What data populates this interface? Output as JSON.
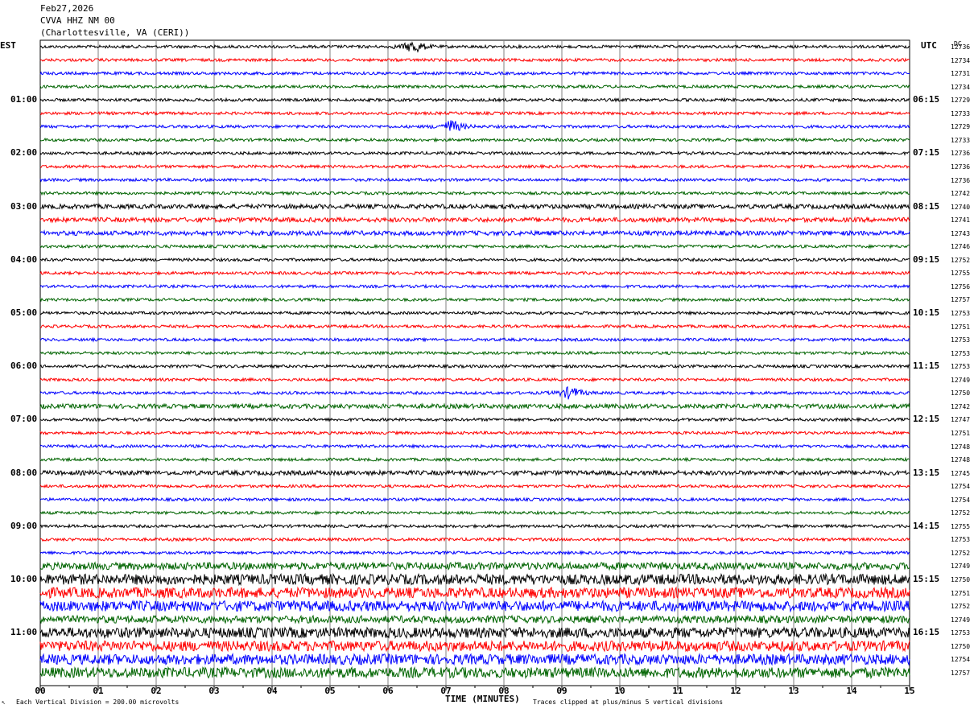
{
  "header": {
    "date": "Feb27,2026",
    "station": "CVVA HHZ NM 00",
    "location": "(Charlottesville, VA (CERI))"
  },
  "left_zone_label": "EST",
  "right_zone_label": "UTC",
  "dc_label": "DC",
  "footer": {
    "scale_note": "Each Vertical Division =  200.00 microvolts",
    "xlabel": "TIME (MINUTES)",
    "clip_note": "Traces clipped at plus/minus 5 vertical divisions",
    "corner_mark": "↖"
  },
  "colors": {
    "cycle": [
      "#000000",
      "#ff0000",
      "#0000ff",
      "#006400"
    ],
    "grid": "#808080",
    "frame": "#000000"
  },
  "chart_data": {
    "type": "line",
    "title": "CVVA HHZ NM 00",
    "xlabel": "TIME (MINUTES)",
    "xlim": [
      0,
      15
    ],
    "x_ticks": [
      "00",
      "01",
      "02",
      "03",
      "04",
      "05",
      "06",
      "07",
      "08",
      "09",
      "10",
      "11",
      "12",
      "13",
      "14",
      "15"
    ],
    "trace_interval_minutes": 15,
    "left_time_labels": [
      "01:00",
      "02:00",
      "03:00",
      "04:00",
      "05:00",
      "06:00",
      "07:00",
      "08:00",
      "09:00",
      "10:00",
      "11:00"
    ],
    "right_time_labels": [
      "06:15",
      "07:15",
      "08:15",
      "09:15",
      "10:15",
      "11:15",
      "12:15",
      "13:15",
      "14:15",
      "15:15",
      "16:15"
    ],
    "dc_offsets": [
      12736,
      12734,
      12731,
      12734,
      12729,
      12733,
      12729,
      12733,
      12736,
      12736,
      12736,
      12742,
      12740,
      12741,
      12743,
      12746,
      12752,
      12755,
      12756,
      12757,
      12753,
      12751,
      12753,
      12753,
      12753,
      12749,
      12750,
      12742,
      12747,
      12751,
      12748,
      12748,
      12745,
      12754,
      12754,
      12752,
      12755,
      12753,
      12752,
      12749,
      12750,
      12751,
      12752,
      12749,
      12753,
      12750,
      12754,
      12757
    ],
    "amplitude_level": [
      1,
      1,
      1,
      1,
      1,
      1,
      1,
      1,
      1,
      1,
      1,
      1,
      2,
      2,
      2,
      1,
      1,
      1,
      1,
      1,
      1,
      1,
      1,
      1,
      1,
      1,
      1,
      2,
      1,
      1,
      1,
      1,
      2,
      1,
      1,
      1,
      1,
      1,
      1,
      3,
      4,
      4,
      4,
      3,
      4,
      4,
      4,
      4
    ],
    "notable_events": [
      {
        "trace": 6,
        "minute": 7.1,
        "note": "local event"
      },
      {
        "trace": 26,
        "minute": 9.15,
        "note": "spike"
      },
      {
        "trace": 0,
        "minute": 6.45,
        "note": "spike"
      }
    ]
  }
}
